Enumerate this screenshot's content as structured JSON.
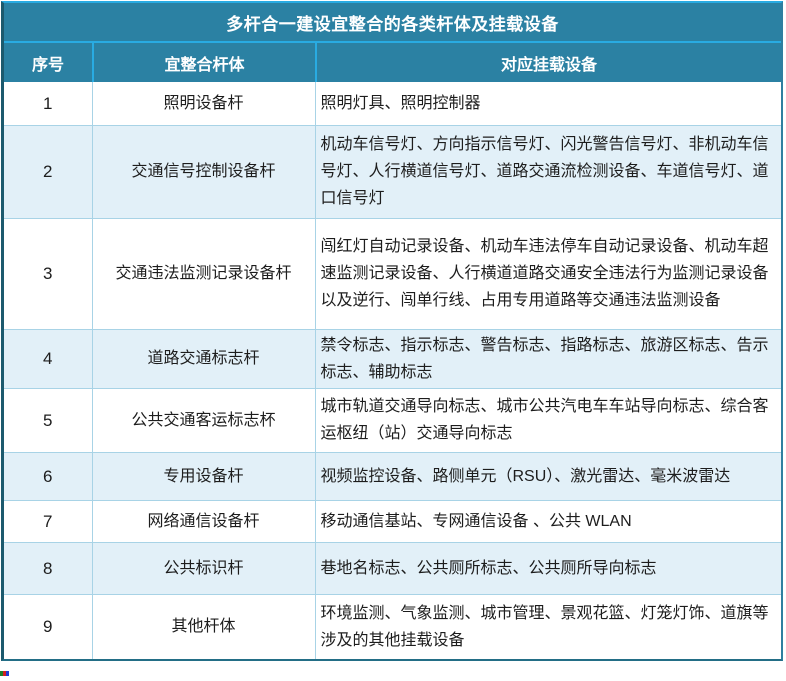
{
  "table": {
    "title": "多杆合一建设宜整合的各类杆体及挂载设备",
    "columns": [
      "序号",
      "宜整合杆体",
      "对应挂载设备"
    ],
    "rows": [
      {
        "no": "1",
        "pole": "照明设备杆",
        "devices": "照明灯具、照明控制器"
      },
      {
        "no": "2",
        "pole": "交通信号控制设备杆",
        "devices": "机动车信号灯、方向指示信号灯、闪光警告信号灯、非机动车信号灯、人行横道信号灯、道路交通流检测设备、车道信号灯、道口信号灯"
      },
      {
        "no": "3",
        "pole": "交通违法监测记录设备杆",
        "devices": "闯红灯自动记录设备、机动车违法停车自动记录设备、机动车超速监测记录设备、人行横道道路交通安全违法行为监测记录设备以及逆行、闯单行线、占用专用道路等交通违法监测设备"
      },
      {
        "no": "4",
        "pole": "道路交通标志杆",
        "devices": "禁令标志、指示标志、警告标志、指路标志、旅游区标志、告示标志、辅助标志"
      },
      {
        "no": "5",
        "pole": "公共交通客运标志杯",
        "devices": "城市轨道交通导向标志、城市公共汽电车车站导向标志、综合客运枢纽（站）交通导向标志"
      },
      {
        "no": "6",
        "pole": "专用设备杆",
        "devices": "视频监控设备、路侧单元（RSU）、激光雷达、毫米波雷达"
      },
      {
        "no": "7",
        "pole": "网络通信设备杆",
        "devices": "移动通信基站、专网通信设备 、公共 WLAN"
      },
      {
        "no": "8",
        "pole": "公共标识杆",
        "devices": "巷地名标志、公共厕所标志、公共厕所导向标志"
      },
      {
        "no": "9",
        "pole": "其他杆体",
        "devices": "环境监测、气象监测、城市管理、景观花篮、灯笼灯饰、道旗等涉及的其他挂载设备"
      }
    ],
    "colors": {
      "header_bg": "#2B81A3",
      "divider_blue": "#29ABE2",
      "row_alt_bg": "#E2F0F8",
      "cell_border": "#A8D3E6",
      "outer_border_left": "#1C5A6E",
      "outer_border_bottom": "#236E86",
      "header_text": "#FFFFFF",
      "body_text": "#1D1D1D"
    }
  }
}
